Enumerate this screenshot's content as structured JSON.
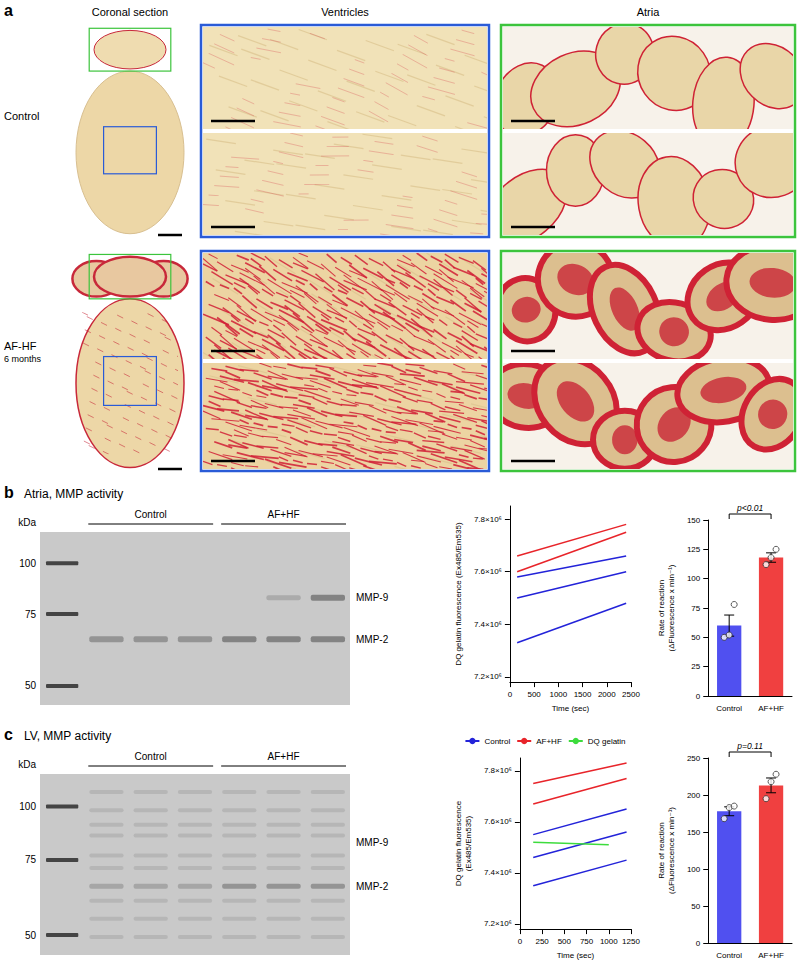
{
  "figure": {
    "panel_a": {
      "letter": "a",
      "columns": [
        "Coronal section",
        "Ventricles",
        "Atria"
      ],
      "rows": [
        {
          "label": "Control"
        },
        {
          "label": "AF-HF",
          "sublabel": "6 months"
        }
      ]
    },
    "panel_b": {
      "letter": "b",
      "title": "Atria, MMP activity",
      "gel": {
        "unit": "kDa",
        "markers": [
          100,
          75,
          50
        ],
        "groups": [
          "Control",
          "AF+HF"
        ],
        "bands": [
          "MMP-9",
          "MMP-2"
        ]
      }
    },
    "panel_c": {
      "letter": "c",
      "title": "LV, MMP activity",
      "gel": {
        "unit": "kDa",
        "markers": [
          100,
          75,
          50
        ],
        "groups": [
          "Control",
          "AF+HF"
        ],
        "bands": [
          "MMP-9",
          "MMP-2"
        ]
      }
    }
  },
  "chart_data": [
    {
      "type": "line",
      "x_label": "Time (sec)",
      "y_label": "DQ gelatin fluorescence (Ex485/Em535)",
      "x": [
        150,
        2400
      ],
      "series": [
        {
          "name": "Control",
          "color": "#2323d9",
          "values": [
            7580000,
            7660000
          ]
        },
        {
          "name": "Control",
          "color": "#2323d9",
          "values": [
            7500000,
            7600000
          ]
        },
        {
          "name": "Control",
          "color": "#2323d9",
          "values": [
            7330000,
            7480000
          ]
        },
        {
          "name": "AF+HF",
          "color": "#e8242a",
          "values": [
            7660000,
            7780000
          ]
        },
        {
          "name": "AF+HF",
          "color": "#e8242a",
          "values": [
            7600000,
            7750000
          ]
        }
      ],
      "xlim": [
        0,
        2500
      ],
      "xticks": [
        0,
        500,
        1000,
        1500,
        2000,
        2500
      ],
      "ylim": [
        7180000,
        7850000
      ],
      "yticks": [
        {
          "value": 7200000,
          "label": "7.2×10⁶"
        },
        {
          "value": 7400000,
          "label": "7.4×10⁶"
        },
        {
          "value": 7600000,
          "label": "7.6×10⁶"
        },
        {
          "value": 7800000,
          "label": "7.8×10⁶"
        }
      ],
      "grid": false
    },
    {
      "type": "bar",
      "y_label": "Rate of reaction (ΔFluorescence x min⁻¹)",
      "categories": [
        "Control",
        "AF+HF"
      ],
      "values": [
        60,
        118
      ],
      "errors": [
        9,
        4
      ],
      "points": [
        [
          50,
          52,
          78
        ],
        [
          112,
          118,
          125
        ]
      ],
      "colors": [
        "#5050f0",
        "#f04040"
      ],
      "ylim": [
        0,
        150
      ],
      "yticks": [
        0,
        25,
        50,
        75,
        100,
        125,
        150
      ],
      "annotation": "p<0.01",
      "grid": false
    },
    {
      "type": "line",
      "x_label": "Time (sec)",
      "y_label": "DQ gelatin fluorescence (Ex485/Em535)",
      "x": [
        150,
        1200
      ],
      "series": [
        {
          "name": "Control",
          "color": "#2323d9",
          "values": [
            7550000,
            7650000
          ]
        },
        {
          "name": "Control",
          "color": "#2323d9",
          "values": [
            7460000,
            7560000
          ]
        },
        {
          "name": "Control",
          "color": "#2323d9",
          "values": [
            7350000,
            7450000
          ]
        },
        {
          "name": "AF+HF",
          "color": "#e8242a",
          "values": [
            7750000,
            7830000
          ]
        },
        {
          "name": "AF+HF",
          "color": "#e8242a",
          "values": [
            7670000,
            7770000
          ]
        },
        {
          "name": "DQ gelatin",
          "color": "#3ddc3d",
          "x": [
            150,
            1000
          ],
          "values": [
            7520000,
            7510000
          ]
        }
      ],
      "xlim": [
        0,
        1250
      ],
      "xticks": [
        0,
        250,
        500,
        750,
        1000,
        1250
      ],
      "ylim": [
        7180000,
        7850000
      ],
      "yticks": [
        {
          "value": 7200000,
          "label": "7.2×10⁶"
        },
        {
          "value": 7400000,
          "label": "7.4×10⁶"
        },
        {
          "value": 7600000,
          "label": "7.6×10⁶"
        },
        {
          "value": 7800000,
          "label": "7.8×10⁶"
        }
      ],
      "legend": "top",
      "grid": false
    },
    {
      "type": "bar",
      "y_label": "Rate of reaction (ΔFluorescence x min⁻¹)",
      "categories": [
        "Control",
        "AF+HF"
      ],
      "values": [
        178,
        213
      ],
      "errors": [
        6,
        10
      ],
      "points": [
        [
          168,
          183,
          185
        ],
        [
          195,
          218,
          228
        ]
      ],
      "colors": [
        "#5050f0",
        "#f04040"
      ],
      "ylim": [
        0,
        250
      ],
      "yticks": [
        0,
        50,
        100,
        150,
        200,
        250
      ],
      "annotation": "p=0.11",
      "grid": false
    }
  ]
}
